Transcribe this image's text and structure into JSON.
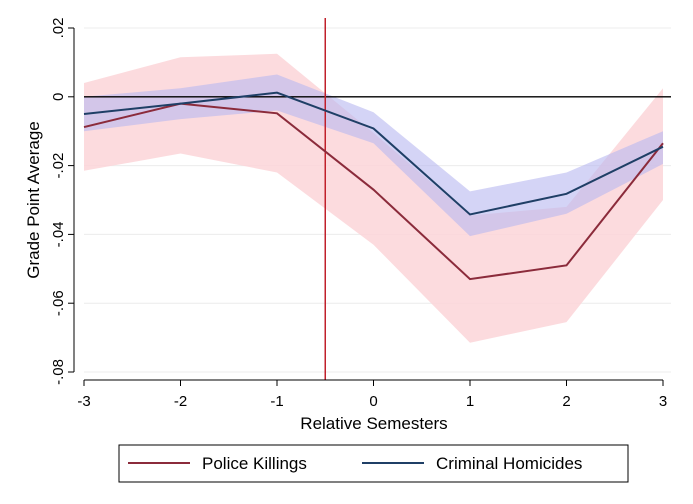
{
  "chart_data": {
    "type": "line",
    "title": "",
    "xlabel": "Relative Semesters",
    "ylabel": "Grade Point Average",
    "xlim": [
      -3,
      3
    ],
    "ylim": [
      -0.08,
      0.02
    ],
    "x_ticks": [
      -3,
      -2,
      -1,
      0,
      1,
      2,
      3
    ],
    "x_tick_labels": [
      "-3",
      "-2",
      "-1",
      "0",
      "1",
      "2",
      "3"
    ],
    "y_ticks": [
      -0.08,
      -0.06,
      -0.04,
      -0.02,
      0,
      0.02
    ],
    "y_tick_labels": [
      "-.08",
      "-.06",
      "-.04",
      "-.02",
      "0",
      ".02"
    ],
    "grid": true,
    "reference_lines": {
      "horizontal_y": 0,
      "vertical_x": -0.5
    },
    "legend_position": "bottom",
    "x": [
      -3,
      -2,
      -1,
      0,
      1,
      2,
      3
    ],
    "series": [
      {
        "name": "Police Killings",
        "color": "#8b2b3b",
        "band_color": "#fbd5d8",
        "values": [
          -0.0088,
          -0.002,
          -0.0048,
          -0.027,
          -0.053,
          -0.049,
          -0.0135
        ],
        "ci_lower": [
          -0.0215,
          -0.0165,
          -0.022,
          -0.043,
          -0.0715,
          -0.0655,
          -0.03
        ],
        "ci_upper": [
          0.004,
          0.0115,
          0.0125,
          -0.0105,
          -0.0345,
          -0.032,
          0.0025
        ]
      },
      {
        "name": "Criminal Homicides",
        "color": "#1f3f66",
        "band_color": "#b8b8f0",
        "values": [
          -0.005,
          -0.002,
          0.0012,
          -0.0092,
          -0.0342,
          -0.0282,
          -0.0145
        ],
        "ci_lower": [
          -0.01,
          -0.0065,
          -0.004,
          -0.0135,
          -0.0405,
          -0.034,
          -0.0195
        ],
        "ci_upper": [
          0.0,
          0.0025,
          0.0065,
          -0.0045,
          -0.0275,
          -0.022,
          -0.01
        ]
      }
    ]
  }
}
